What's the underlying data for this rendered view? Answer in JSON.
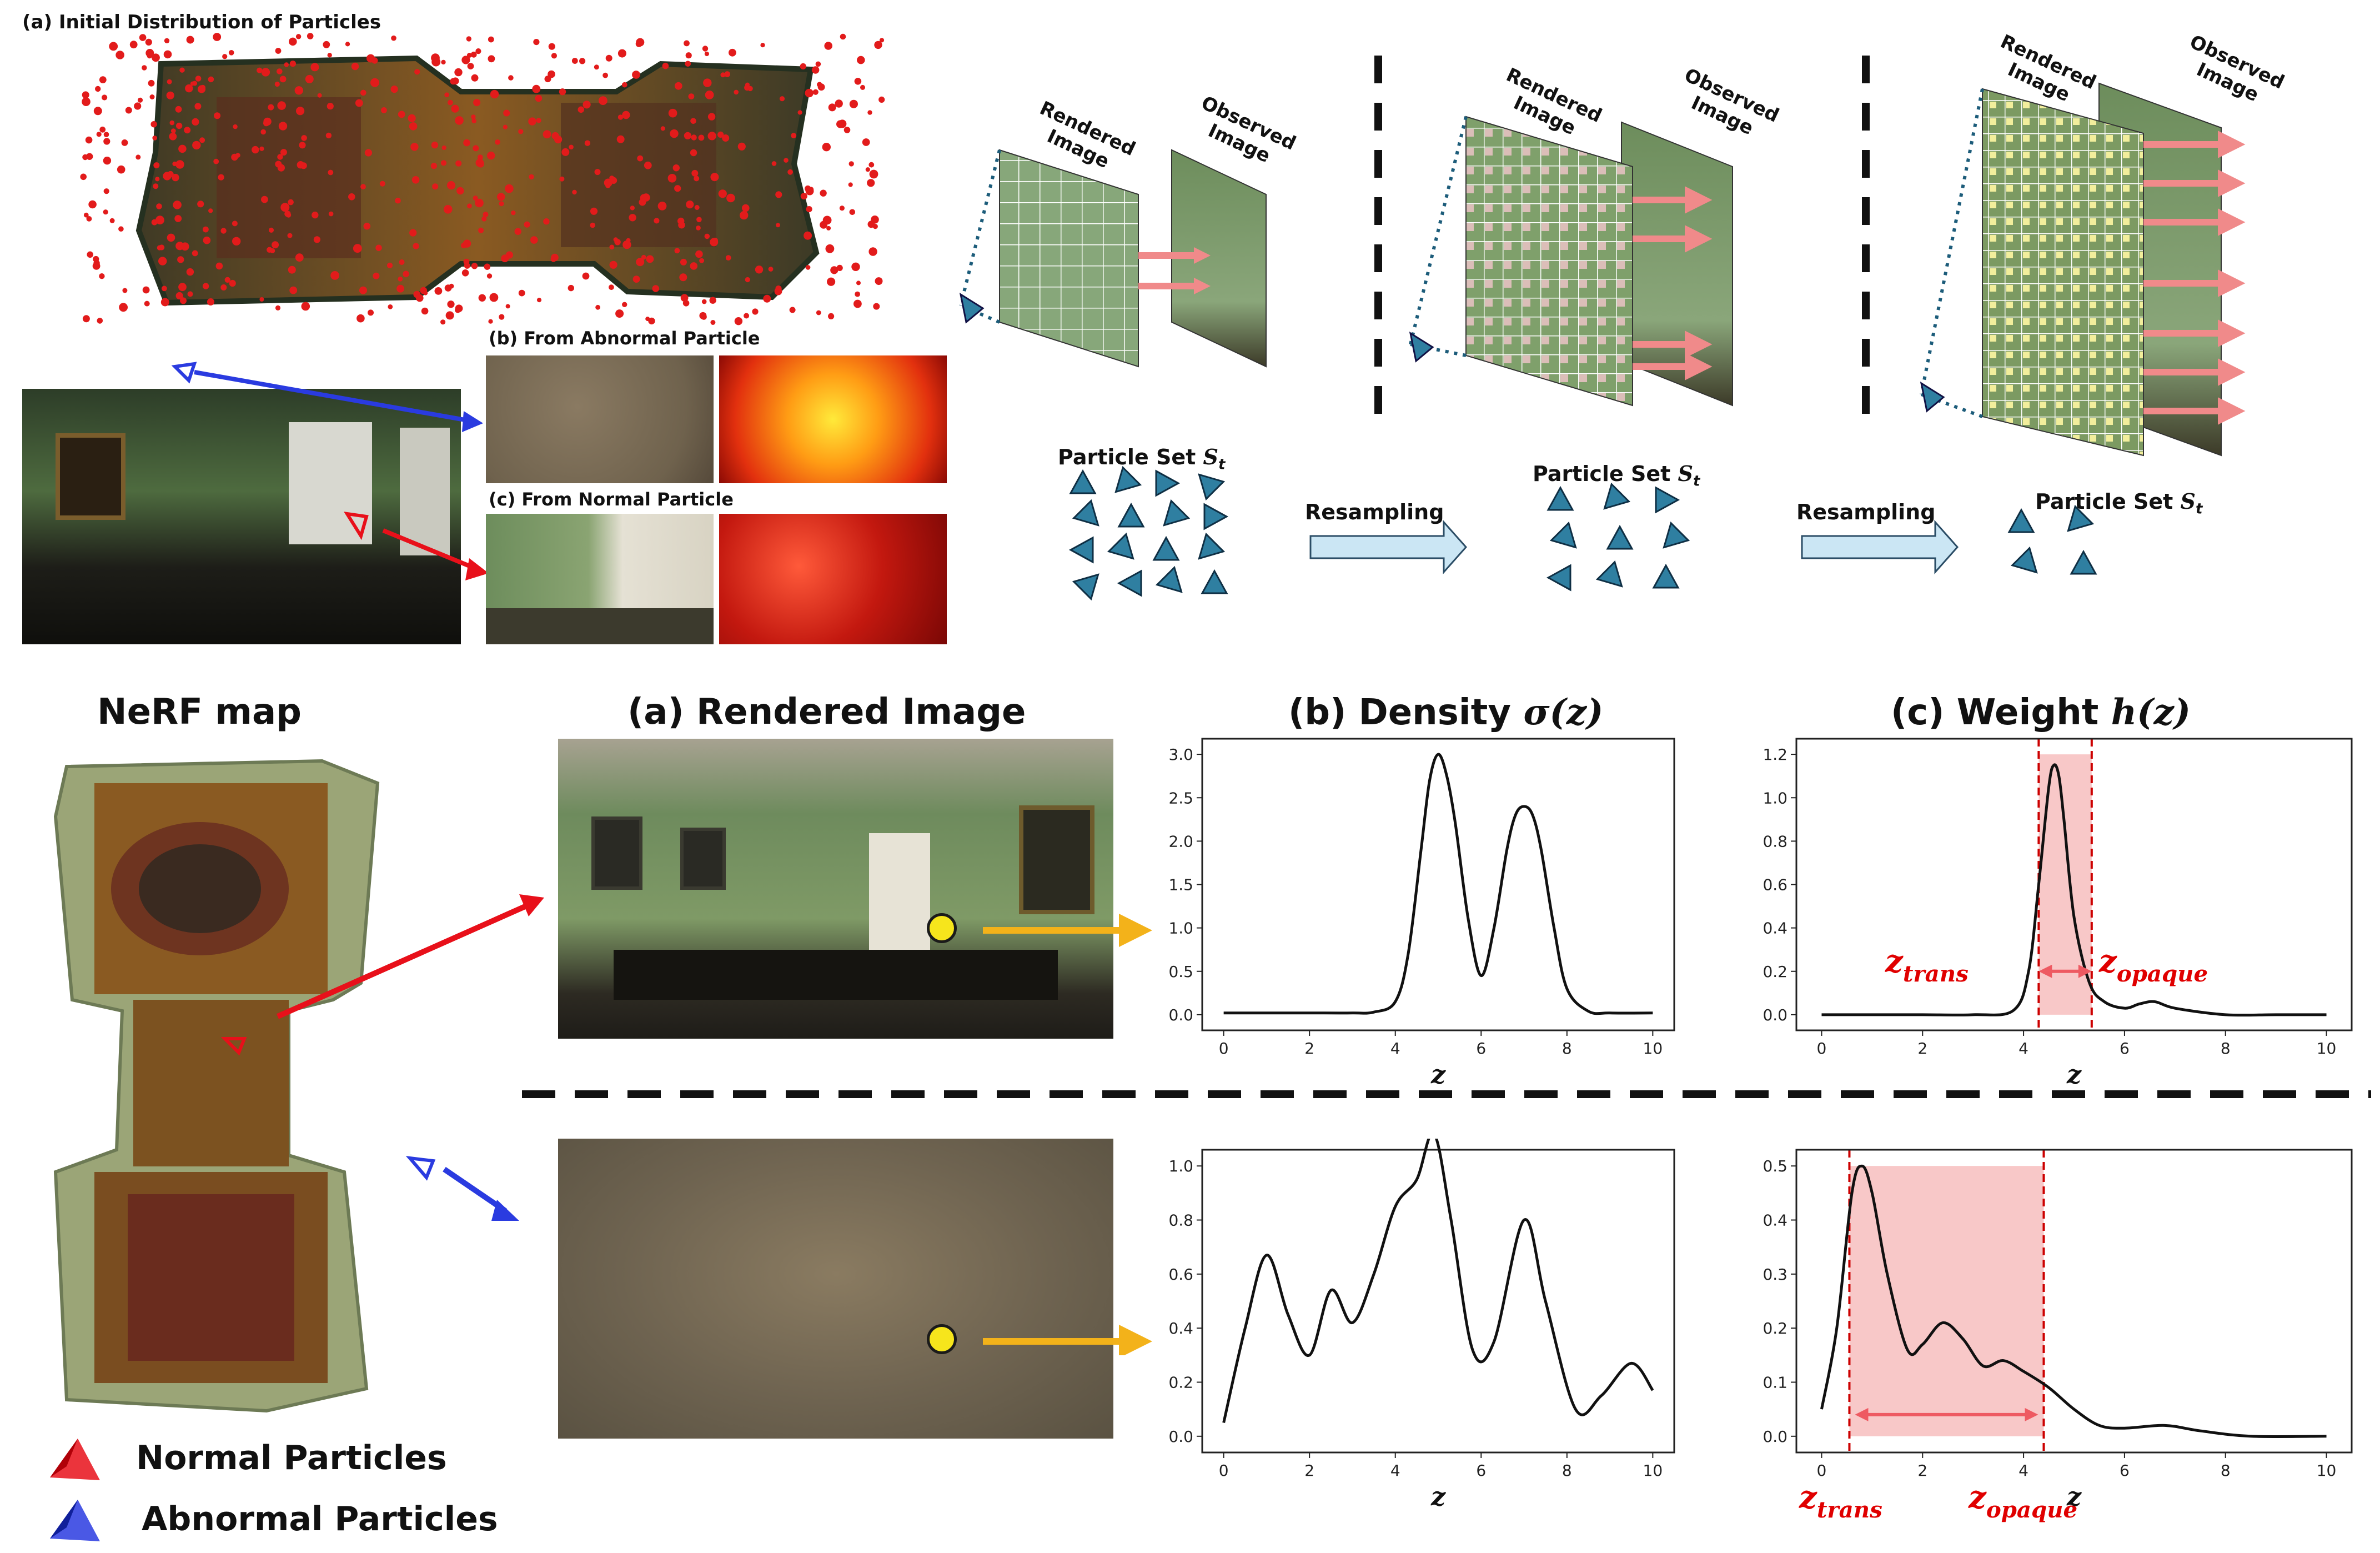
{
  "top_left": {
    "title_a": "(a) Initial Distribution of Particles",
    "label_b": "(b) From Abnormal Particle",
    "label_c": "(c) From Normal Particle"
  },
  "top_right": {
    "rendered_image": "Rendered Image",
    "observed_image": "Observed Image",
    "particle_set": "Particle Set",
    "particle_set_symbol": "S",
    "particle_set_sub": "t",
    "resampling": "Resampling"
  },
  "bottom": {
    "nerf_map": "NeRF map",
    "col_a": "(a) Rendered Image",
    "col_b_prefix": "(b) Density ",
    "col_b_symbol": "σ(z)",
    "col_c_prefix": "(c) Weight ",
    "col_c_symbol": "h(z)",
    "legend_normal": "Normal Particles",
    "legend_abnormal": "Abnormal Particles",
    "z_trans_base": "z",
    "z_trans_sub": "trans",
    "z_opaque_base": "z",
    "z_opaque_sub": "opaque"
  },
  "colors": {
    "normal": "#e8101a",
    "abnormal": "#2a3be0",
    "arrow_yellow": "#f3b21a",
    "band_pink": "#f6b5b5",
    "dashed_red": "#cc0000"
  },
  "chart_data": [
    {
      "type": "line",
      "title": "(b) Density σ(z)",
      "xlabel": "z",
      "xlim": [
        0,
        10
      ],
      "ylim": [
        0,
        3.0
      ],
      "xticks": [
        0,
        2,
        4,
        6,
        8,
        10
      ],
      "yticks": [
        0.0,
        0.5,
        1.0,
        1.5,
        2.0,
        2.5,
        3.0
      ],
      "x": [
        0,
        1,
        2,
        3,
        3.5,
        4,
        4.3,
        4.6,
        4.8,
        5.0,
        5.2,
        5.4,
        5.7,
        6.0,
        6.3,
        6.6,
        6.8,
        7.0,
        7.2,
        7.4,
        7.7,
        8.0,
        8.5,
        9,
        10
      ],
      "y": [
        0.02,
        0.02,
        0.02,
        0.02,
        0.03,
        0.15,
        0.7,
        1.9,
        2.7,
        3.0,
        2.75,
        2.2,
        1.1,
        0.45,
        1.0,
        1.9,
        2.3,
        2.4,
        2.3,
        1.9,
        1.0,
        0.3,
        0.04,
        0.02,
        0.02
      ]
    },
    {
      "type": "line",
      "title": "(c) Weight h(z)",
      "xlabel": "z",
      "xlim": [
        0,
        10
      ],
      "ylim": [
        0,
        1.2
      ],
      "xticks": [
        0,
        2,
        4,
        6,
        8,
        10
      ],
      "yticks": [
        0.0,
        0.2,
        0.4,
        0.6,
        0.8,
        1.0,
        1.2
      ],
      "x": [
        0,
        1,
        2,
        3,
        3.8,
        4.1,
        4.3,
        4.5,
        4.6,
        4.7,
        4.8,
        5.0,
        5.3,
        5.6,
        6.0,
        6.3,
        6.6,
        7.0,
        8,
        9,
        10
      ],
      "y": [
        0.0,
        0.0,
        0.0,
        0.0,
        0.02,
        0.2,
        0.6,
        1.05,
        1.15,
        1.1,
        0.9,
        0.45,
        0.15,
        0.06,
        0.03,
        0.05,
        0.06,
        0.03,
        0.0,
        0.0,
        0.0
      ],
      "z_trans": 4.3,
      "z_opaque": 5.35
    },
    {
      "type": "line",
      "title": "(b) Density σ(z)",
      "xlabel": "z",
      "xlim": [
        0,
        10
      ],
      "ylim": [
        0,
        1.0
      ],
      "xticks": [
        0,
        2,
        4,
        6,
        8,
        10
      ],
      "yticks": [
        0.0,
        0.2,
        0.4,
        0.6,
        0.8,
        1.0
      ],
      "x": [
        0,
        0.5,
        1.0,
        1.5,
        2.0,
        2.5,
        3.0,
        3.5,
        4.0,
        4.5,
        4.9,
        5.3,
        5.8,
        6.3,
        7.0,
        7.5,
        8.2,
        8.8,
        9.5,
        10
      ],
      "y": [
        0.05,
        0.4,
        0.67,
        0.45,
        0.3,
        0.54,
        0.42,
        0.6,
        0.85,
        0.95,
        1.12,
        0.8,
        0.32,
        0.35,
        0.8,
        0.5,
        0.1,
        0.15,
        0.27,
        0.17
      ]
    },
    {
      "type": "line",
      "title": "(c) Weight h(z)",
      "xlabel": "z",
      "xlim": [
        0,
        10
      ],
      "ylim": [
        0,
        0.5
      ],
      "xticks": [
        0,
        2,
        4,
        6,
        8,
        10
      ],
      "yticks": [
        0.0,
        0.1,
        0.2,
        0.3,
        0.4,
        0.5
      ],
      "x": [
        0,
        0.3,
        0.6,
        0.8,
        1.0,
        1.3,
        1.7,
        2.0,
        2.4,
        2.8,
        3.2,
        3.6,
        4.0,
        4.5,
        5.0,
        5.5,
        6.0,
        6.8,
        7.5,
        8.5,
        10
      ],
      "y": [
        0.05,
        0.2,
        0.45,
        0.5,
        0.45,
        0.3,
        0.16,
        0.17,
        0.21,
        0.18,
        0.13,
        0.14,
        0.12,
        0.09,
        0.05,
        0.02,
        0.015,
        0.02,
        0.01,
        0.0,
        0.0
      ],
      "z_trans": 0.55,
      "z_opaque": 4.4
    }
  ]
}
